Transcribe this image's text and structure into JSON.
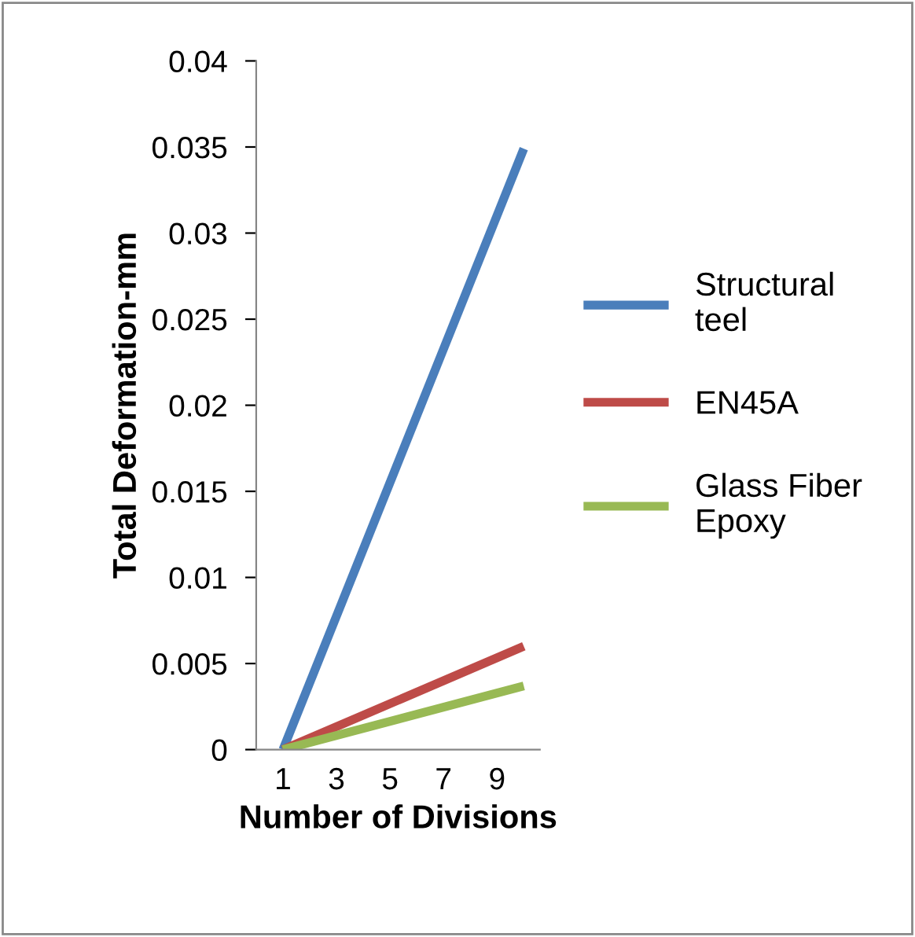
{
  "chart_data": {
    "type": "line",
    "xlabel": "Number of Divisions",
    "ylabel": "Total Deformation-mm",
    "x": [
      1,
      10
    ],
    "series": [
      {
        "name": "Structural\nteel",
        "color": "#4a7ebb",
        "values": [
          0,
          0.0349
        ]
      },
      {
        "name": "EN45A",
        "color": "#be4b48",
        "values": [
          0,
          0.006
        ]
      },
      {
        "name": "Glass Fiber\nEpoxy",
        "color": "#98b954",
        "values": [
          0,
          0.0037
        ]
      }
    ],
    "xlim": [
      0,
      10.6
    ],
    "xticks": [
      1,
      3,
      5,
      7,
      9
    ],
    "ylim": [
      0,
      0.04
    ],
    "yticks": [
      0,
      0.005,
      0.01,
      0.015,
      0.02,
      0.025,
      0.03,
      0.035,
      0.04
    ],
    "grid": false,
    "legend": "right",
    "marker": "none",
    "line_style": "solid"
  }
}
